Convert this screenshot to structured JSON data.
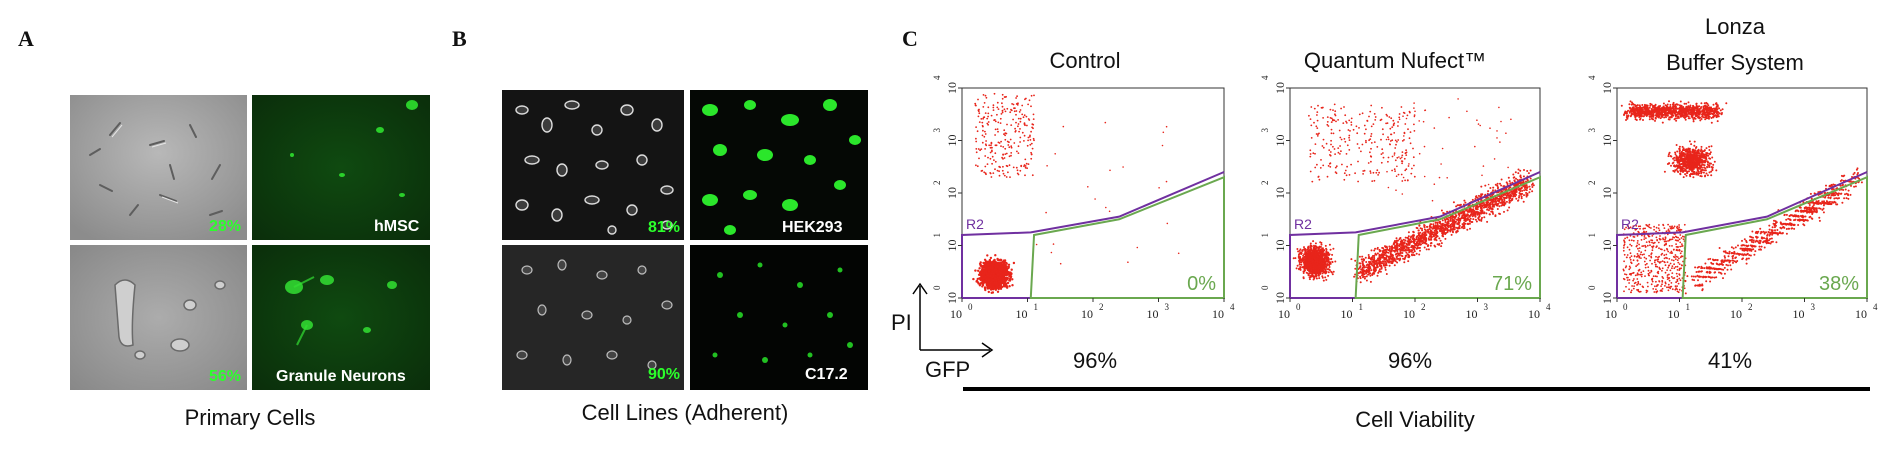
{
  "panels": {
    "A": {
      "letter": "A",
      "caption": "Primary Cells",
      "rows": [
        {
          "percent": "28%",
          "cell_type": "hMSC"
        },
        {
          "percent": "56%",
          "cell_type": "Granule Neurons"
        }
      ]
    },
    "B": {
      "letter": "B",
      "caption": "Cell Lines (Adherent)",
      "rows": [
        {
          "percent": "81%",
          "cell_type": "HEK293"
        },
        {
          "percent": "90%",
          "cell_type": "C17.2"
        }
      ]
    },
    "C": {
      "letter": "C",
      "plots": [
        {
          "title": "Control",
          "gate_label": "R2",
          "gfp_percent": "0%",
          "viability": "96%"
        },
        {
          "title": "Quantum Nufect™",
          "gate_label": "R2",
          "gfp_percent": "71%",
          "viability": "96%"
        },
        {
          "title_line1": "Lonza",
          "title_line2": "Buffer System",
          "gate_label": "R2",
          "gfp_percent": "38%",
          "viability": "41%"
        }
      ],
      "y_axis_label": "PI",
      "x_axis_label": "GFP",
      "viability_label": "Cell Viability",
      "tick_base": "10",
      "tick_exponents": [
        "0",
        "1",
        "2",
        "3",
        "4"
      ]
    }
  },
  "colors": {
    "scatter_dots": "#e8251b",
    "gate_r2": "#7030a0",
    "gate_gfp": "#6aa84f",
    "fluorescence": "#1fc41f",
    "percent_text": "#2bff2b"
  }
}
